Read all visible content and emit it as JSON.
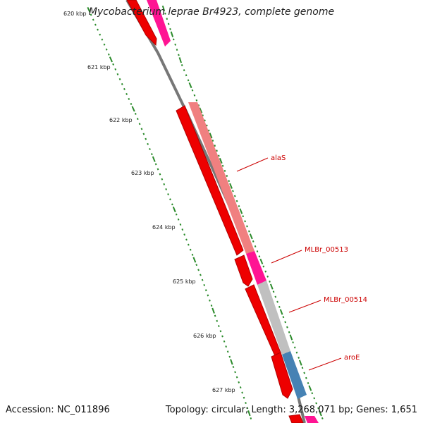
{
  "header": {
    "title": "Mycobacterium leprae Br4923, complete genome"
  },
  "footer": {
    "accession": "Accession: NC_011896",
    "summary": "Topology: circular; Length: 3,268,071 bp; Genes: 1,651"
  },
  "ruler": {
    "ticks": [
      "620 kbp",
      "621 kbp",
      "622 kbp",
      "623 kbp",
      "624 kbp",
      "625 kbp",
      "626 kbp",
      "627 kbp"
    ]
  },
  "gene_labels": [
    "alaS",
    "MLBr_00513",
    "MLBr_00514",
    "aroE"
  ],
  "colors": {
    "backbone": "#7a7a7a",
    "forward_red": "#ee0000",
    "ruler_green": "#2a8a2a",
    "alaS": "#f08080",
    "MLBr_00513": "#ff1493",
    "MLBr_00514": "#c0c0c0",
    "aroE": "#4682b4",
    "label_red": "#cc0000"
  }
}
